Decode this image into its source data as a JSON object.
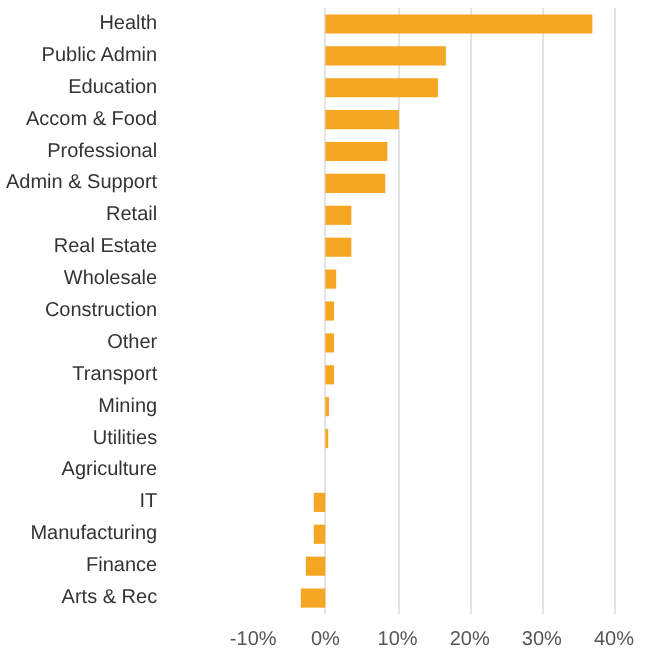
{
  "chart_data": {
    "type": "bar",
    "orientation": "horizontal",
    "categories": [
      "Health",
      "Public Admin",
      "Education",
      "Accom & Food",
      "Professional",
      "Admin & Support",
      "Retail",
      "Real Estate",
      "Wholesale",
      "Construction",
      "Other",
      "Transport",
      "Mining",
      "Utilities",
      "Agriculture",
      "IT",
      "Manufacturing",
      "Finance",
      "Arts & Rec"
    ],
    "values": [
      37,
      16.7,
      15.6,
      10.2,
      8.6,
      8.3,
      3.6,
      3.6,
      1.5,
      1.2,
      1.2,
      1.2,
      0.5,
      0.4,
      0,
      -1.6,
      -1.6,
      -2.7,
      -3.4
    ],
    "color": "#f5a623",
    "xlim": [
      -10,
      40
    ],
    "xticks": [
      {
        "value": -10,
        "label": "-10%"
      },
      {
        "value": 0,
        "label": "0%"
      },
      {
        "value": 10,
        "label": "10%"
      },
      {
        "value": 20,
        "label": "20%"
      },
      {
        "value": 30,
        "label": "30%"
      },
      {
        "value": 40,
        "label": "40%"
      }
    ],
    "grid": "x"
  }
}
